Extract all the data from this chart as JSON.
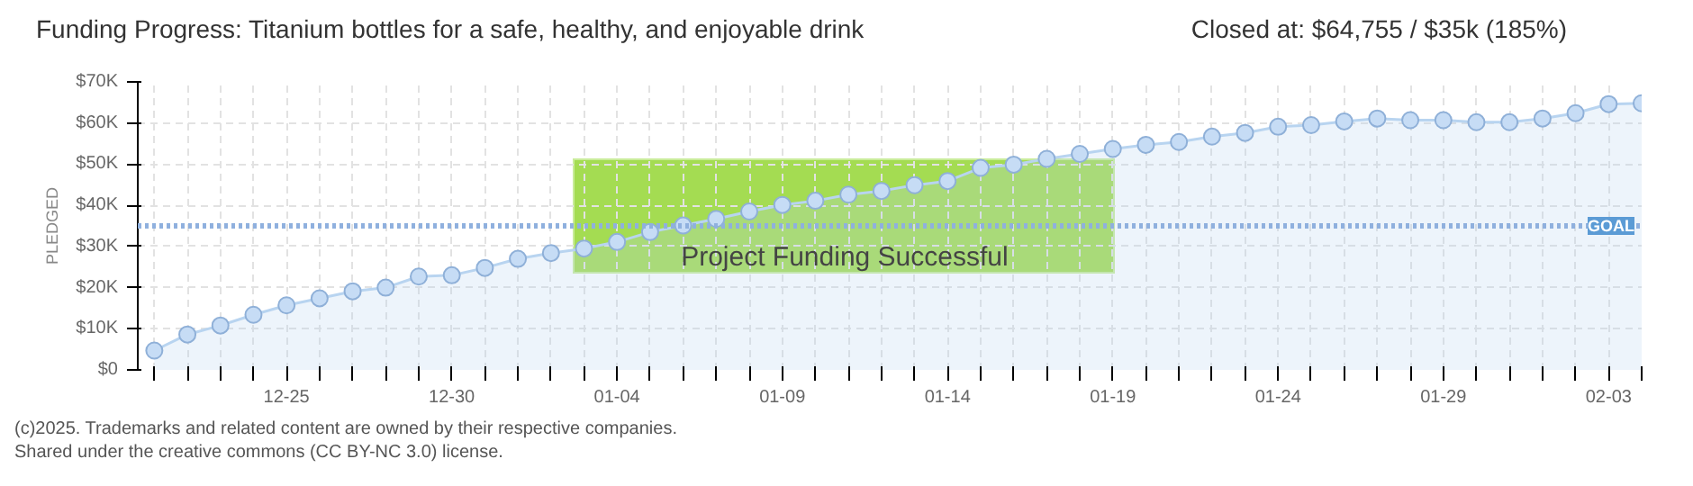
{
  "chart_data": {
    "type": "area",
    "title": "Funding Progress: Titanium bottles for a safe, healthy, and enjoyable drink",
    "subtitle": "Closed at: $64,755 / $35k (185%)",
    "ylabel": "PLEDGED",
    "annotations": [
      "Project Funding Successful",
      "(c)2025. Trademarks and related content are owned by their respective companies.",
      "Shared under the creative commons (CC BY-NC 3.0) license."
    ],
    "categories": [
      null,
      null,
      null,
      null,
      "12-25",
      null,
      null,
      null,
      null,
      "12-30",
      null,
      null,
      null,
      null,
      "01-04",
      null,
      null,
      null,
      null,
      "01-09",
      null,
      null,
      null,
      null,
      "01-14",
      null,
      null,
      null,
      null,
      "01-19",
      null,
      null,
      null,
      null,
      "01-24",
      null,
      null,
      null,
      null,
      "01-29",
      null,
      null,
      null,
      null,
      "02-03",
      null
    ],
    "series": [
      {
        "color": "#b8d4f0",
        "values": [
          4700,
          8600,
          10800,
          13400,
          15700,
          17400,
          19100,
          20000,
          22700,
          23000,
          24800,
          27000,
          28400,
          29500,
          31100,
          33500,
          35100,
          36700,
          38500,
          40100,
          41100,
          42600,
          43500,
          44900,
          45900,
          49100,
          49900,
          51300,
          52500,
          53700,
          54700,
          55400,
          56700,
          57600,
          59100,
          59500,
          60400,
          61100,
          60700,
          60700,
          60200,
          60200,
          61100,
          62400,
          64600,
          64800
        ]
      }
    ],
    "marker": "circle",
    "grid": true,
    "ylim": [
      0,
      70000
    ],
    "yticks": [
      {
        "value": 0,
        "label": "$0"
      },
      {
        "value": 10000,
        "label": "$10K"
      },
      {
        "value": 20000,
        "label": "$20K"
      },
      {
        "value": 30000,
        "label": "$30K"
      },
      {
        "value": 40000,
        "label": "$40K"
      },
      {
        "value": 50000,
        "label": "$50K"
      },
      {
        "value": 60000,
        "label": "$60K"
      },
      {
        "value": 70000,
        "label": "$70K"
      }
    ],
    "ref_lines": [
      {
        "axis": "y",
        "value": 35000,
        "label": "GOAL",
        "color": "#8fb0de",
        "line_style": "dotted"
      }
    ]
  }
}
